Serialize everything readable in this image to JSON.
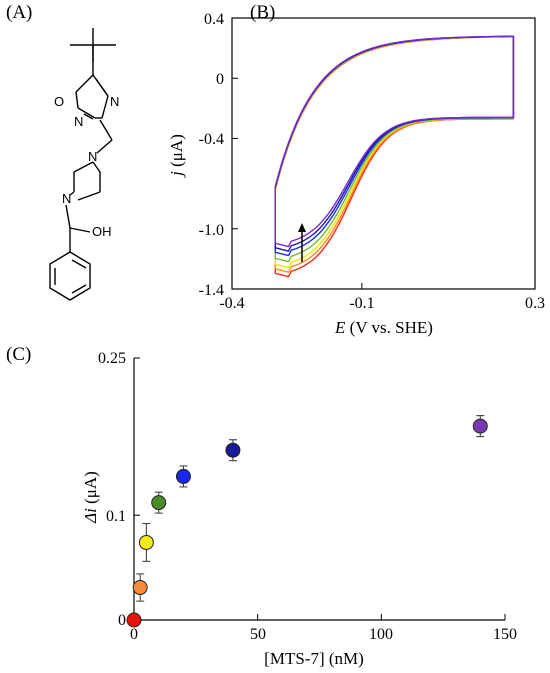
{
  "panels": {
    "a": "(A)",
    "b": "(B)",
    "c": "(C)"
  },
  "molecule": {
    "atoms": [
      "O",
      "N",
      "N",
      "N",
      "N",
      "OH"
    ]
  },
  "chart_data": [
    {
      "panel": "(B)",
      "type": "line",
      "xlabel_var": "E",
      "xlabel_rest": " (V vs. SHE)",
      "ylabel_var": "j",
      "ylabel_rest": " (μA)",
      "xlim": [
        -0.4,
        0.3
      ],
      "ylim": [
        -1.4,
        0.4
      ],
      "x_ticks": [
        "-0.4",
        "-0.1",
        "0.3"
      ],
      "x_tick_values": [
        -0.4,
        -0.1,
        0.3
      ],
      "y_ticks": [
        "0.4",
        "0",
        "-0.4",
        "-1.0",
        "-1.4"
      ],
      "y_tick_values": [
        0.4,
        0,
        -0.4,
        -1.0,
        -1.4
      ],
      "sweep_x_range": [
        -0.3,
        0.25
      ],
      "series_colors": [
        "#ff2a1a",
        "#ff8c1a",
        "#f2e20a",
        "#6fbf2a",
        "#1a2cf0",
        "#1b1ba0",
        "#7a2ad0"
      ],
      "anodic_peak_y": [
        -1.32,
        -1.29,
        -1.26,
        -1.22,
        -1.18,
        -1.15,
        -1.12
      ],
      "anodic_end_y": [
        -0.27,
        -0.27,
        -0.265,
        -0.265,
        -0.262,
        -0.26,
        -0.26
      ],
      "annotation": "arrow-up"
    },
    {
      "panel": "(C)",
      "type": "scatter",
      "xlabel": "[MTS-7] (nM)",
      "ylabel_var": "Δi",
      "ylabel_rest": " (μA)",
      "xlim": [
        0,
        150
      ],
      "ylim": [
        0,
        0.25
      ],
      "x_ticks": [
        "0",
        "50",
        "100",
        "150"
      ],
      "x_tick_values": [
        0,
        50,
        100,
        150
      ],
      "y_ticks": [
        "0",
        "0.1",
        "0.25"
      ],
      "y_tick_values": [
        0,
        0.1,
        0.25
      ],
      "points": [
        {
          "x": 0,
          "y": 0.0,
          "err": 0,
          "color": "#e8140c"
        },
        {
          "x": 2.5,
          "y": 0.031,
          "err": 0.013,
          "color": "#f58a3c"
        },
        {
          "x": 5,
          "y": 0.074,
          "err": 0.018,
          "color": "#f4ea1a"
        },
        {
          "x": 10,
          "y": 0.112,
          "err": 0.01,
          "color": "#4a8a2a"
        },
        {
          "x": 20,
          "y": 0.137,
          "err": 0.01,
          "color": "#1a28ee"
        },
        {
          "x": 40,
          "y": 0.162,
          "err": 0.01,
          "color": "#1a1a9a"
        },
        {
          "x": 140,
          "y": 0.185,
          "err": 0.01,
          "color": "#7a38b0"
        }
      ]
    }
  ]
}
